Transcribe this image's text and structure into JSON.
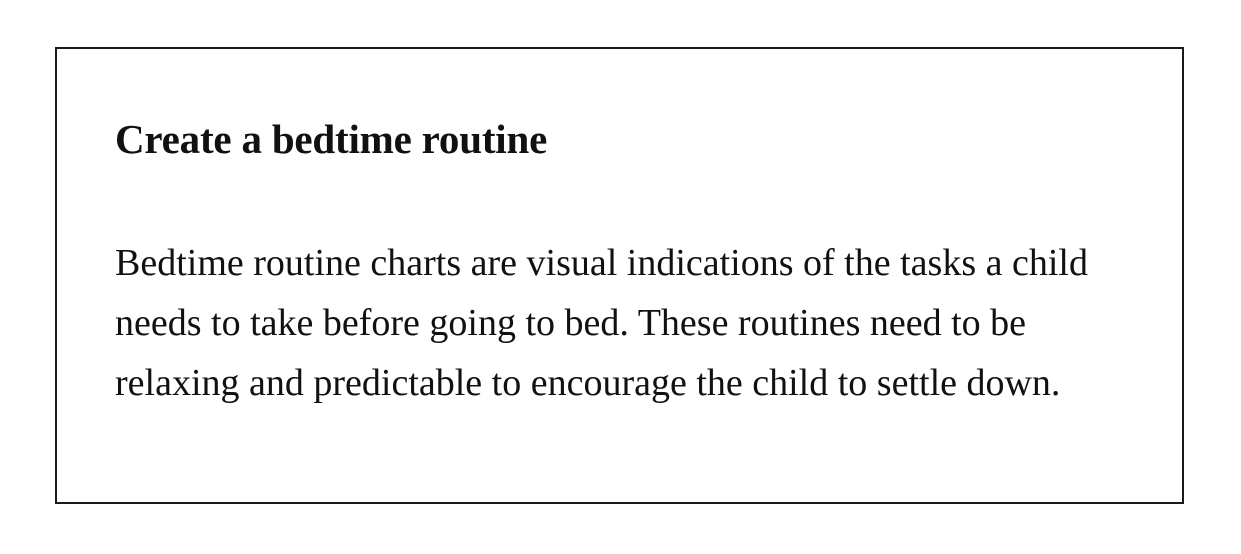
{
  "card": {
    "title": "Create a bedtime routine",
    "body_lines": [
      "Bedtime routine charts are visual indications of the tasks a child",
      "needs to take before going to bed. These routines need to be",
      "relaxing and predictable to encourage the child to settle down."
    ]
  }
}
